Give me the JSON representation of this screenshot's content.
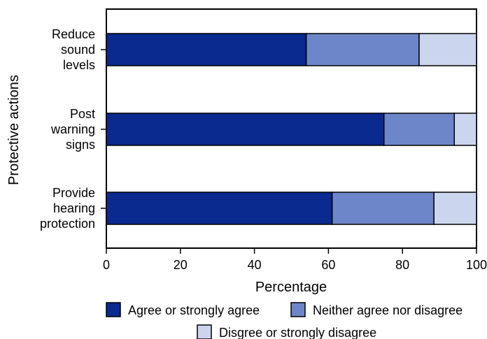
{
  "chart_data": {
    "type": "bar",
    "orientation": "horizontal",
    "stacked": true,
    "title": "",
    "xlabel": "Percentage",
    "ylabel": "Protective actions",
    "xlim": [
      0,
      100
    ],
    "x_ticks": [
      "0",
      "20",
      "40",
      "60",
      "80",
      "100"
    ],
    "x_tick_values": [
      0,
      20,
      40,
      60,
      80,
      100
    ],
    "categories": [
      [
        "Reduce",
        "sound",
        "levels"
      ],
      [
        "Post",
        "warning",
        "signs"
      ],
      [
        "Provide",
        "hearing",
        "protection"
      ]
    ],
    "series": [
      {
        "name": "Agree or strongly agree",
        "color": "#0a2a8f",
        "values": [
          54,
          75,
          61
        ]
      },
      {
        "name": "Neither agree nor disagree",
        "color": "#6d86c9",
        "values": [
          30.5,
          19,
          27.5
        ]
      },
      {
        "name": "Disgree or strongly disagree",
        "color": "#ccd5ee",
        "values": [
          15.5,
          6,
          11.5
        ]
      }
    ],
    "grid": false,
    "legend_position": "bottom"
  }
}
